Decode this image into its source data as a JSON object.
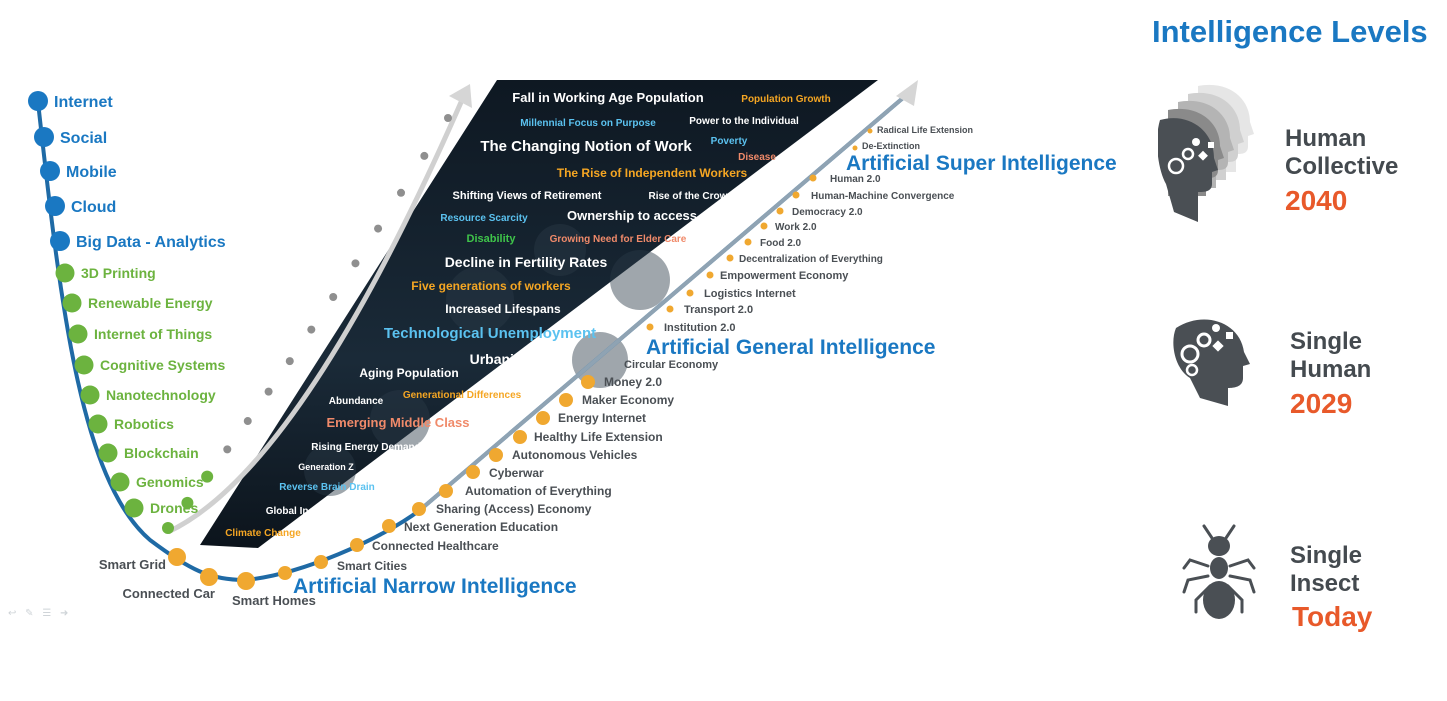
{
  "header": {
    "title": "Intelligence Levels"
  },
  "colors": {
    "blue": "#1a78c2",
    "green": "#6cb33f",
    "orange": "#f0a830",
    "gray": "#8c8c8c",
    "dark_panel": "#14202c",
    "level_text": "#444a4f",
    "year": "#e8592a"
  },
  "tech_stack": {
    "blue_items": [
      "Internet",
      "Social",
      "Mobile",
      "Cloud",
      "Big Data - Analytics"
    ],
    "green_items": [
      "3D Printing",
      "Renewable Energy",
      "Internet of Things",
      "Cognitive Systems",
      "Nanotechnology",
      "Robotics",
      "Blockchain",
      "Genomics",
      "Drones"
    ]
  },
  "narrow_ai": {
    "title": "Artificial Narrow Intelligence",
    "items": [
      "Smart Grid",
      "Connected Car",
      "Smart Homes",
      "Smart Cities",
      "Connected Healthcare",
      "Next Generation Education",
      "Sharing (Access) Economy",
      "Automation of Everything",
      "Cyberwar",
      "Autonomous Vehicles",
      "Healthy Life Extension",
      "Energy Internet",
      "Maker Economy",
      "Money 2.0",
      "Circular Economy"
    ]
  },
  "general_ai": {
    "title": "Artificial General Intelligence",
    "items": [
      "Institution 2.0",
      "Transport 2.0",
      "Logistics Internet",
      "Empowerment Economy",
      "Decentralization of Everything",
      "Food 2.0",
      "Work 2.0",
      "Democracy 2.0",
      "Human-Machine Convergence",
      "Human 2.0"
    ]
  },
  "super_ai": {
    "title": "Artificial Super Intelligence",
    "items": [
      "De-Extinction",
      "Radical Life Extension"
    ]
  },
  "social_trends": [
    {
      "text": "Fall in Working Age Population",
      "color": "white"
    },
    {
      "text": "Population Growth",
      "color": "orange"
    },
    {
      "text": "Millennial Focus on Purpose",
      "color": "cyan"
    },
    {
      "text": "Power to the Individual",
      "color": "white"
    },
    {
      "text": "The Changing Notion of Work",
      "color": "white"
    },
    {
      "text": "Poverty",
      "color": "cyan"
    },
    {
      "text": "Disease",
      "color": "salmon"
    },
    {
      "text": "The Rise of Independent Workers",
      "color": "orange"
    },
    {
      "text": "Shifting Views of Retirement",
      "color": "white"
    },
    {
      "text": "Rise of the Crowd",
      "color": "white"
    },
    {
      "text": "Resource Scarcity",
      "color": "cyan"
    },
    {
      "text": "Ownership to access",
      "color": "white"
    },
    {
      "text": "Disability",
      "color": "green"
    },
    {
      "text": "Growing Need for Elder Care",
      "color": "salmon"
    },
    {
      "text": "Decline in Fertility Rates",
      "color": "white"
    },
    {
      "text": "Five generations of workers",
      "color": "orange"
    },
    {
      "text": "Increased Lifespans",
      "color": "white"
    },
    {
      "text": "Technological Unemployment",
      "color": "cyan"
    },
    {
      "text": "Urbanization",
      "color": "white"
    },
    {
      "text": "Aging Population",
      "color": "white"
    },
    {
      "text": "Abundance",
      "color": "white"
    },
    {
      "text": "Generational Differences",
      "color": "orange"
    },
    {
      "text": "Emerging Middle Class",
      "color": "salmon"
    },
    {
      "text": "Rising Energy Demand",
      "color": "white"
    },
    {
      "text": "Generation Z",
      "color": "white"
    },
    {
      "text": "Reverse Brain Drain",
      "color": "cyan"
    },
    {
      "text": "Global Inequality",
      "color": "white"
    },
    {
      "text": "Climate Change",
      "color": "orange"
    }
  ],
  "levels": [
    {
      "label": "Human\nCollective",
      "year": "2040",
      "icon": "collective-heads-icon"
    },
    {
      "label": "Single\nHuman",
      "year": "2029",
      "icon": "human-head-gears-icon"
    },
    {
      "label": "Single\nInsect",
      "year": "Today",
      "icon": "ant-icon"
    }
  ]
}
